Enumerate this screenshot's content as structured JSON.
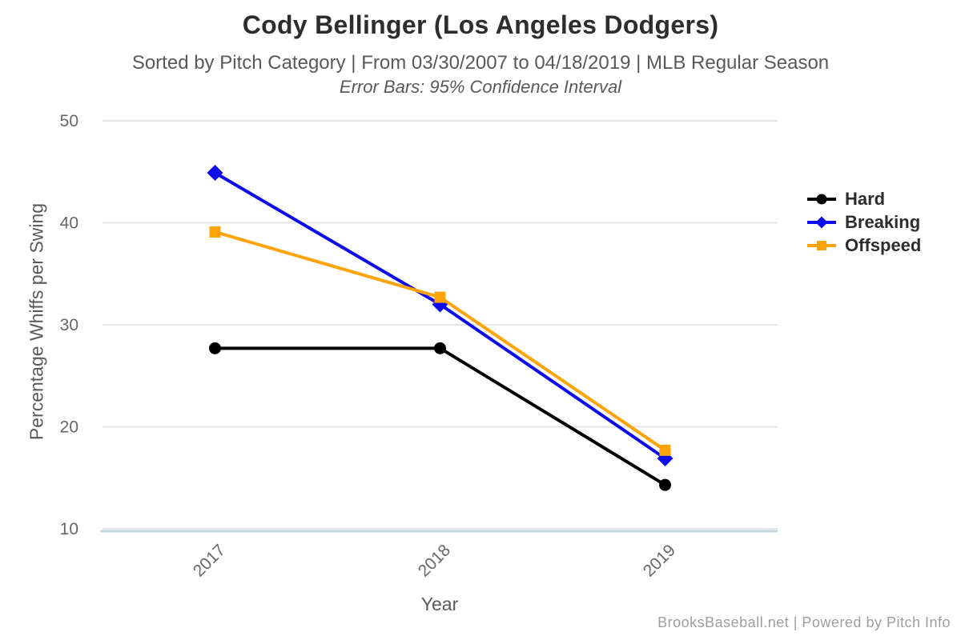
{
  "chart_data": {
    "type": "line",
    "title": "Cody Bellinger (Los Angeles Dodgers)",
    "subtitle": "Sorted by Pitch Category | From 03/30/2007 to 04/18/2019 | MLB Regular Season",
    "subtitle2": "Error Bars: 95% Confidence Interval",
    "xlabel": "Year",
    "ylabel": "Percentage Whiffs per Swing",
    "categories": [
      "2017",
      "2018",
      "2019"
    ],
    "series": [
      {
        "name": "Hard",
        "marker": "circle",
        "color": "#000000",
        "values": [
          27.7,
          27.7,
          14.3
        ]
      },
      {
        "name": "Breaking",
        "marker": "diamond",
        "color": "#0d0dec",
        "values": [
          44.9,
          32.0,
          16.9
        ]
      },
      {
        "name": "Offspeed",
        "marker": "square",
        "color": "#ffa408",
        "values": [
          39.1,
          32.7,
          17.7
        ]
      }
    ],
    "yticks": [
      50,
      40,
      30,
      20,
      10
    ],
    "ylim": [
      10,
      50
    ],
    "grid": true,
    "legend_position": "right"
  },
  "colors": {
    "grid_line": "#e4e4e4",
    "axis_line": "#c6d4de",
    "tick_label": "#666666",
    "title_text": "#2d2d2d",
    "subtitle_text": "#595959",
    "footer_text": "#9e9e9e",
    "background": "#ffffff"
  },
  "footer": {
    "credit": "BrooksBaseball.net | Powered by Pitch Info"
  }
}
